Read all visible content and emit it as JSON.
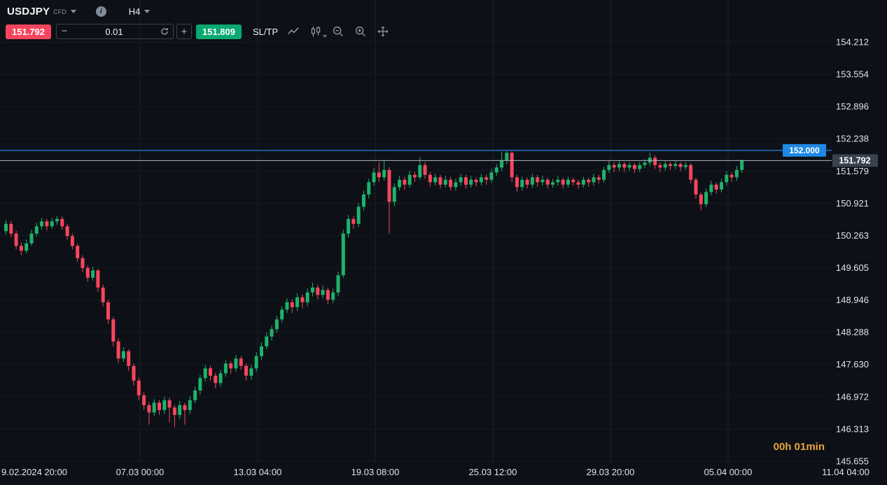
{
  "header": {
    "symbol": "USDJPY",
    "instrument_type": "CFD",
    "timeframe": "H4"
  },
  "toolbar": {
    "sell_price": "151.792",
    "buy_price": "151.809",
    "quantity": "0.01",
    "decrease_label": "−",
    "increase_label": "+",
    "sl_tp_label": "SL/TP"
  },
  "chart": {
    "countdown": "00h 01min"
  },
  "colors": {
    "up": "#1eb26b",
    "down": "#f6455d",
    "blue": "#1e88e5",
    "sell_red": "#f6455d",
    "buy_green": "#0ba871",
    "countdown_orange": "#e8a33c",
    "axis_text": "#dfe3ea",
    "background": "#0d1117",
    "last_price_badge": "#3a4150"
  },
  "chart_data": {
    "type": "candlestick",
    "symbol": "USDJPY",
    "timeframe": "H4",
    "y_axis": {
      "labels": [
        154.212,
        153.554,
        152.896,
        152.238,
        151.579,
        150.921,
        150.263,
        149.605,
        148.946,
        148.288,
        147.63,
        146.972,
        146.313,
        145.655
      ],
      "min": 145.655,
      "max": 154.212
    },
    "x_axis": {
      "labels": [
        "9.02.2024 20:00",
        "07.03 00:00",
        "13.03 04:00",
        "19.03 08:00",
        "25.03 12:00",
        "29.03 20:00",
        "05.04 00:00",
        "11.04 04:00"
      ]
    },
    "price_line": {
      "value": 152.0,
      "label": "152.000"
    },
    "last_price": {
      "value": 151.792,
      "label": "151.792"
    },
    "candles": [
      [
        150.35,
        150.58,
        150.28,
        150.5
      ],
      [
        150.5,
        150.56,
        150.22,
        150.3
      ],
      [
        150.3,
        150.36,
        149.98,
        150.05
      ],
      [
        150.05,
        150.12,
        149.86,
        149.95
      ],
      [
        149.95,
        150.18,
        149.9,
        150.1
      ],
      [
        150.1,
        150.38,
        150.05,
        150.3
      ],
      [
        150.3,
        150.52,
        150.24,
        150.45
      ],
      [
        150.45,
        150.62,
        150.38,
        150.55
      ],
      [
        150.55,
        150.6,
        150.36,
        150.45
      ],
      [
        150.45,
        150.62,
        150.4,
        150.55
      ],
      [
        150.55,
        150.66,
        150.48,
        150.6
      ],
      [
        150.6,
        150.65,
        150.38,
        150.45
      ],
      [
        150.45,
        150.5,
        150.18,
        150.25
      ],
      [
        150.25,
        150.3,
        149.98,
        150.05
      ],
      [
        150.05,
        150.1,
        149.72,
        149.8
      ],
      [
        149.8,
        149.86,
        149.52,
        149.6
      ],
      [
        149.6,
        149.65,
        149.32,
        149.4
      ],
      [
        149.4,
        149.62,
        149.34,
        149.55
      ],
      [
        149.55,
        149.58,
        149.12,
        149.2
      ],
      [
        149.2,
        149.26,
        148.82,
        148.9
      ],
      [
        148.9,
        148.95,
        148.46,
        148.55
      ],
      [
        148.55,
        148.6,
        148.0,
        148.1
      ],
      [
        148.1,
        148.16,
        147.66,
        147.75
      ],
      [
        147.75,
        147.98,
        147.68,
        147.9
      ],
      [
        147.9,
        147.94,
        147.5,
        147.6
      ],
      [
        147.6,
        147.66,
        147.2,
        147.3
      ],
      [
        147.3,
        147.36,
        146.9,
        147.0
      ],
      [
        147.0,
        147.06,
        146.7,
        146.8
      ],
      [
        146.8,
        146.86,
        146.4,
        146.65
      ],
      [
        146.65,
        146.92,
        146.58,
        146.85
      ],
      [
        146.85,
        146.9,
        146.6,
        146.7
      ],
      [
        146.7,
        146.97,
        146.62,
        146.9
      ],
      [
        146.9,
        146.95,
        146.45,
        146.75
      ],
      [
        146.75,
        146.8,
        146.35,
        146.6
      ],
      [
        146.6,
        146.88,
        146.52,
        146.8
      ],
      [
        146.8,
        146.85,
        146.4,
        146.7
      ],
      [
        146.7,
        146.98,
        146.62,
        146.9
      ],
      [
        146.9,
        147.18,
        146.84,
        147.1
      ],
      [
        147.1,
        147.42,
        147.02,
        147.35
      ],
      [
        147.35,
        147.62,
        147.28,
        147.55
      ],
      [
        147.55,
        147.6,
        147.3,
        147.4
      ],
      [
        147.4,
        147.46,
        147.14,
        147.25
      ],
      [
        147.25,
        147.52,
        147.18,
        147.45
      ],
      [
        147.45,
        147.72,
        147.38,
        147.65
      ],
      [
        147.65,
        147.7,
        147.44,
        147.55
      ],
      [
        147.55,
        147.82,
        147.48,
        147.75
      ],
      [
        147.75,
        147.8,
        147.52,
        147.6
      ],
      [
        147.6,
        147.65,
        147.3,
        147.4
      ],
      [
        147.4,
        147.62,
        147.32,
        147.55
      ],
      [
        147.55,
        147.88,
        147.48,
        147.8
      ],
      [
        147.8,
        148.08,
        147.72,
        148.0
      ],
      [
        148.0,
        148.28,
        147.94,
        148.2
      ],
      [
        148.2,
        148.42,
        148.12,
        148.35
      ],
      [
        148.35,
        148.62,
        148.28,
        148.55
      ],
      [
        148.55,
        148.82,
        148.48,
        148.75
      ],
      [
        148.75,
        148.98,
        148.68,
        148.9
      ],
      [
        148.9,
        148.96,
        148.68,
        148.8
      ],
      [
        148.8,
        149.08,
        148.72,
        149.0
      ],
      [
        149.0,
        149.06,
        148.78,
        148.9
      ],
      [
        148.9,
        149.18,
        148.82,
        149.1
      ],
      [
        149.1,
        149.3,
        149.02,
        149.2
      ],
      [
        149.2,
        149.26,
        148.96,
        149.05
      ],
      [
        149.05,
        149.24,
        148.98,
        149.15
      ],
      [
        149.15,
        149.2,
        148.86,
        148.95
      ],
      [
        148.95,
        149.18,
        148.88,
        149.1
      ],
      [
        149.1,
        149.52,
        149.02,
        149.45
      ],
      [
        149.45,
        150.38,
        149.4,
        150.3
      ],
      [
        150.3,
        150.68,
        150.22,
        150.6
      ],
      [
        150.6,
        150.66,
        150.4,
        150.5
      ],
      [
        150.5,
        150.92,
        150.44,
        150.85
      ],
      [
        150.85,
        151.18,
        150.78,
        151.1
      ],
      [
        151.1,
        151.42,
        151.02,
        151.35
      ],
      [
        151.35,
        151.64,
        151.28,
        151.55
      ],
      [
        151.55,
        151.76,
        151.36,
        151.45
      ],
      [
        151.45,
        151.8,
        151.38,
        151.6
      ],
      [
        151.6,
        151.66,
        150.3,
        150.95
      ],
      [
        150.95,
        151.32,
        150.86,
        151.25
      ],
      [
        151.25,
        151.48,
        151.18,
        151.4
      ],
      [
        151.4,
        151.46,
        151.2,
        151.3
      ],
      [
        151.3,
        151.58,
        151.24,
        151.5
      ],
      [
        151.5,
        151.56,
        151.36,
        151.45
      ],
      [
        151.45,
        151.86,
        151.4,
        151.7
      ],
      [
        151.7,
        151.76,
        151.42,
        151.5
      ],
      [
        151.5,
        151.56,
        151.26,
        151.35
      ],
      [
        151.35,
        151.52,
        151.28,
        151.45
      ],
      [
        151.45,
        151.5,
        151.22,
        151.3
      ],
      [
        151.3,
        151.48,
        151.24,
        151.4
      ],
      [
        151.4,
        151.46,
        151.18,
        151.25
      ],
      [
        151.25,
        151.42,
        151.18,
        151.35
      ],
      [
        151.35,
        151.52,
        151.28,
        151.45
      ],
      [
        151.45,
        151.5,
        151.22,
        151.3
      ],
      [
        151.3,
        151.48,
        151.24,
        151.4
      ],
      [
        151.4,
        151.45,
        151.26,
        151.35
      ],
      [
        151.35,
        151.52,
        151.28,
        151.45
      ],
      [
        151.45,
        151.5,
        151.3,
        151.4
      ],
      [
        151.4,
        151.62,
        151.34,
        151.55
      ],
      [
        151.55,
        151.72,
        151.48,
        151.65
      ],
      [
        151.65,
        151.97,
        151.58,
        151.8
      ],
      [
        151.8,
        151.99,
        151.72,
        151.95
      ],
      [
        151.95,
        151.98,
        151.36,
        151.45
      ],
      [
        151.45,
        151.5,
        151.16,
        151.25
      ],
      [
        151.25,
        151.46,
        151.18,
        151.4
      ],
      [
        151.4,
        151.45,
        151.22,
        151.3
      ],
      [
        151.3,
        151.52,
        151.24,
        151.45
      ],
      [
        151.45,
        151.5,
        151.26,
        151.35
      ],
      [
        151.35,
        151.48,
        151.28,
        151.4
      ],
      [
        151.4,
        151.44,
        151.22,
        151.3
      ],
      [
        151.3,
        151.42,
        151.24,
        151.35
      ],
      [
        151.35,
        151.48,
        151.28,
        151.4
      ],
      [
        151.4,
        151.44,
        151.22,
        151.3
      ],
      [
        151.3,
        151.46,
        151.24,
        151.4
      ],
      [
        151.4,
        151.44,
        151.28,
        151.35
      ],
      [
        151.35,
        151.4,
        151.22,
        151.3
      ],
      [
        151.3,
        151.46,
        151.24,
        151.4
      ],
      [
        151.4,
        151.44,
        151.26,
        151.35
      ],
      [
        151.35,
        151.52,
        151.28,
        151.45
      ],
      [
        151.45,
        151.5,
        151.32,
        151.4
      ],
      [
        151.4,
        151.66,
        151.34,
        151.6
      ],
      [
        151.6,
        151.78,
        151.54,
        151.7
      ],
      [
        151.7,
        151.76,
        151.56,
        151.65
      ],
      [
        151.65,
        151.78,
        151.58,
        151.72
      ],
      [
        151.72,
        151.76,
        151.56,
        151.65
      ],
      [
        151.65,
        151.76,
        151.58,
        151.7
      ],
      [
        151.7,
        151.74,
        151.54,
        151.62
      ],
      [
        151.62,
        151.76,
        151.56,
        151.7
      ],
      [
        151.7,
        151.82,
        151.64,
        151.75
      ],
      [
        151.75,
        151.95,
        151.68,
        151.85
      ],
      [
        151.85,
        151.9,
        151.62,
        151.7
      ],
      [
        151.7,
        151.75,
        151.56,
        151.65
      ],
      [
        151.65,
        151.78,
        151.58,
        151.72
      ],
      [
        151.72,
        151.76,
        151.6,
        151.68
      ],
      [
        151.68,
        151.78,
        151.62,
        151.72
      ],
      [
        151.72,
        151.76,
        151.58,
        151.66
      ],
      [
        151.66,
        151.76,
        151.6,
        151.7
      ],
      [
        151.7,
        151.74,
        151.32,
        151.4
      ],
      [
        151.4,
        151.44,
        151.02,
        151.1
      ],
      [
        151.1,
        151.14,
        150.78,
        150.9
      ],
      [
        150.9,
        151.22,
        150.84,
        151.15
      ],
      [
        151.15,
        151.38,
        151.08,
        151.3
      ],
      [
        151.3,
        151.35,
        151.12,
        151.2
      ],
      [
        151.2,
        151.42,
        151.14,
        151.35
      ],
      [
        151.35,
        151.58,
        151.28,
        151.5
      ],
      [
        151.5,
        151.55,
        151.36,
        151.45
      ],
      [
        151.45,
        151.68,
        151.38,
        151.6
      ],
      [
        151.6,
        151.81,
        151.54,
        151.792
      ]
    ]
  }
}
